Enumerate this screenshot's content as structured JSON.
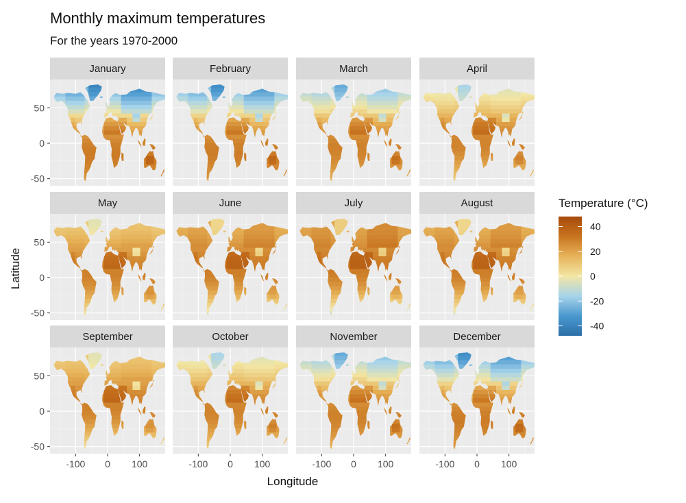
{
  "chart_data": {
    "type": "heatmap",
    "title": "Monthly maximum temperatures",
    "subtitle": "For the years 1970-2000",
    "xlabel": "Longitude",
    "ylabel": "Latitude",
    "x_ticks": [
      -100,
      0,
      100
    ],
    "x_tick_labels": [
      "-100",
      "0",
      "100"
    ],
    "y_ticks": [
      50,
      0,
      -50
    ],
    "y_tick_labels": [
      "50",
      "0",
      "-50"
    ],
    "xlim": [
      -180,
      180
    ],
    "ylim": [
      -60,
      90
    ],
    "grid": true,
    "facets": [
      {
        "label": "January",
        "month": 1
      },
      {
        "label": "February",
        "month": 2
      },
      {
        "label": "March",
        "month": 3
      },
      {
        "label": "April",
        "month": 4
      },
      {
        "label": "May",
        "month": 5
      },
      {
        "label": "June",
        "month": 6
      },
      {
        "label": "July",
        "month": 7
      },
      {
        "label": "August",
        "month": 8
      },
      {
        "label": "September",
        "month": 9
      },
      {
        "label": "October",
        "month": 10
      },
      {
        "label": "November",
        "month": 11
      },
      {
        "label": "December",
        "month": 12
      }
    ],
    "legend": {
      "title": "Temperature (°C)",
      "position": "right",
      "range": [
        -48,
        48
      ],
      "ticks": [
        40,
        20,
        0,
        -20,
        -40
      ],
      "tick_labels": [
        "40",
        "20",
        "0",
        "-20",
        "-40"
      ],
      "colors": [
        "#2c6fa8",
        "#4a98cf",
        "#a8d4ea",
        "#f2e6a5",
        "#e7b35a",
        "#c8741f",
        "#a64a0b"
      ]
    }
  }
}
